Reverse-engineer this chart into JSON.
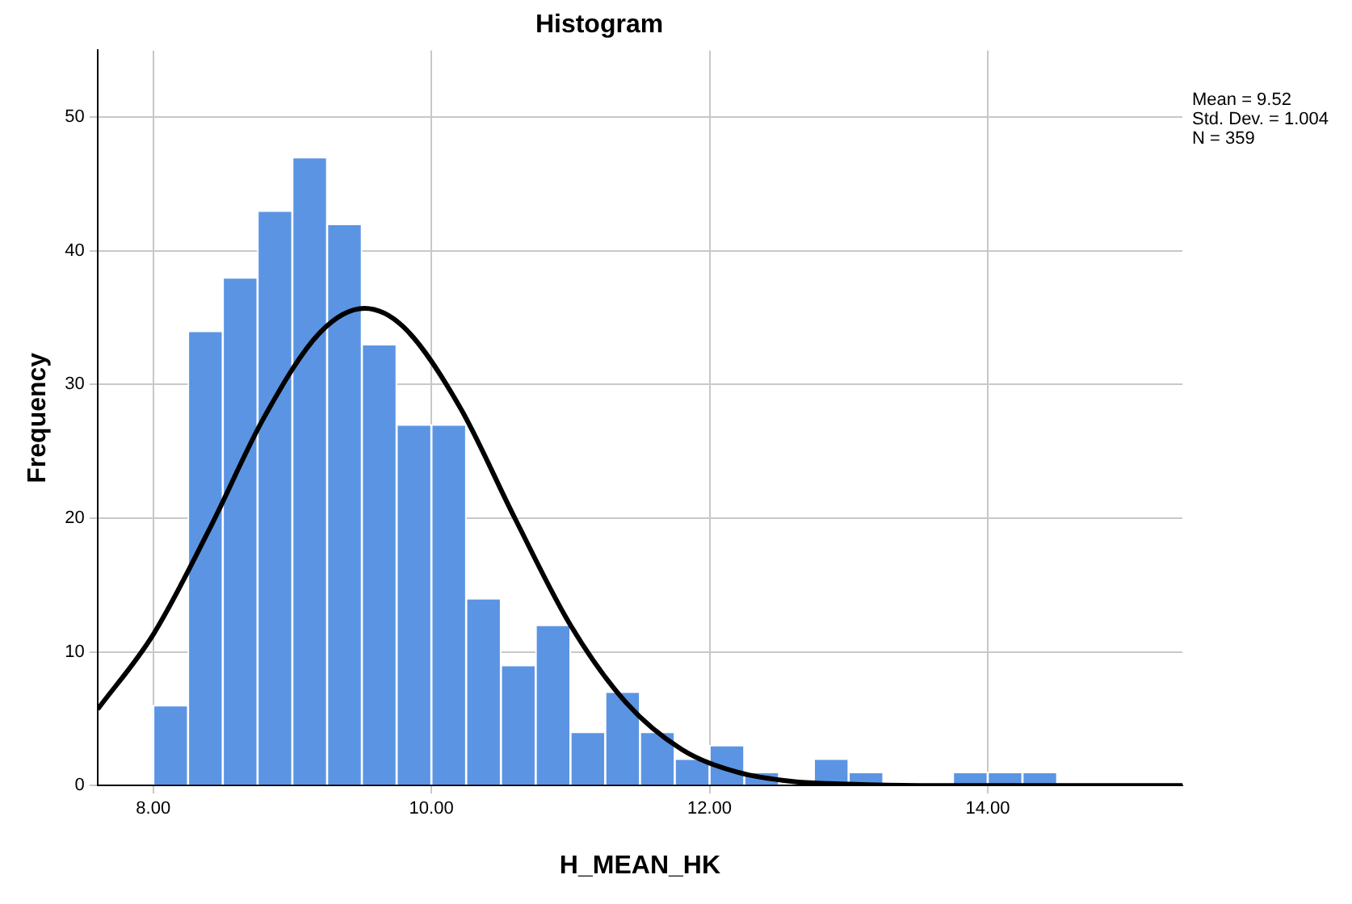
{
  "chart_data": {
    "type": "histogram",
    "title": "Histogram",
    "xlabel": "H_MEAN_HK",
    "ylabel": "Frequency",
    "bins": [
      8.0,
      8.25,
      8.5,
      8.75,
      9.0,
      9.25,
      9.5,
      9.75,
      10.0,
      10.25,
      10.5,
      10.75,
      11.0,
      11.25,
      11.5,
      11.75,
      12.0,
      12.25,
      12.5,
      12.75,
      13.0,
      13.25,
      13.5,
      13.75,
      14.0,
      14.25,
      14.5
    ],
    "values": [
      6,
      34,
      38,
      43,
      47,
      42,
      33,
      27,
      27,
      14,
      9,
      12,
      4,
      7,
      4,
      2,
      3,
      1,
      0,
      2,
      1,
      0,
      0,
      1,
      1,
      1
    ],
    "color": "#5b94e3",
    "series": [
      {
        "type": "line",
        "color": "#000000",
        "x": [
          7.6,
          8.0,
          8.4,
          8.8,
          9.2,
          9.52,
          9.8,
          10.2,
          10.6,
          11.0,
          11.4,
          11.8,
          12.2,
          12.6,
          13.0,
          13.5,
          14.0,
          15.4
        ],
        "values": [
          5.7,
          11.3,
          19.1,
          27.6,
          33.9,
          35.7,
          34.3,
          28.4,
          20.0,
          12.0,
          6.2,
          2.7,
          1.0,
          0.3,
          0.1,
          0,
          0,
          0
        ]
      }
    ],
    "xlim": [
      7.6,
      15.4
    ],
    "xticks": [
      {
        "value": 8,
        "label": "8.00"
      },
      {
        "value": 10,
        "label": "10.00"
      },
      {
        "value": 12,
        "label": "12.00"
      },
      {
        "value": 14,
        "label": "14.00"
      }
    ],
    "ylim": [
      0,
      55
    ],
    "yticks": [
      0,
      10,
      20,
      30,
      40,
      50
    ],
    "grid": true,
    "legend": false,
    "marker": "none",
    "line_style": "solid",
    "annotations": [
      "Mean = 9.52",
      "Std. Dev. = 1.004",
      "N = 359"
    ]
  }
}
